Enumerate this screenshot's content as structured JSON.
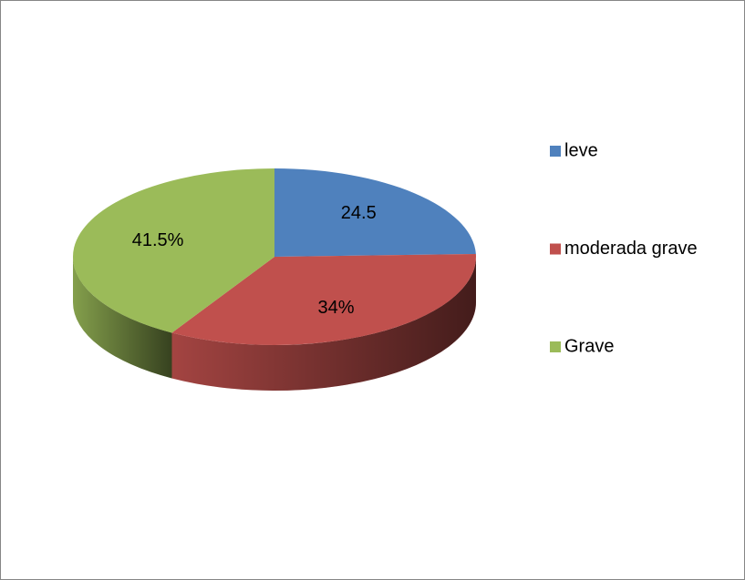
{
  "chart_data": {
    "type": "pie",
    "three_d": true,
    "categories": [
      "leve",
      "moderada grave",
      "Grave"
    ],
    "values": [
      24.5,
      34,
      41.5
    ],
    "value_labels": [
      "24.5",
      "34%",
      "41.5%"
    ],
    "colors": [
      "#4f81bd",
      "#c0504d",
      "#9bbb59"
    ],
    "legend": "right"
  }
}
